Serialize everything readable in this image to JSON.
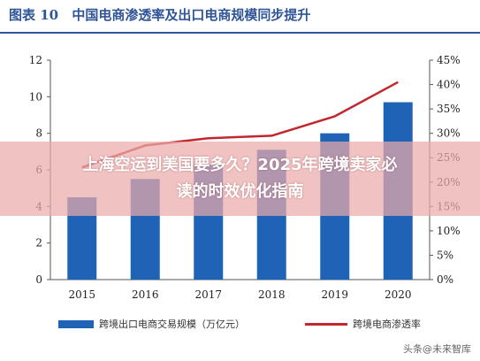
{
  "header": {
    "figure_no": "图表 10",
    "title": "中国电商渗透率及出口电商规模同步提升"
  },
  "overlay": {
    "line1": "上海空运到美国要多久？2025年跨境卖家必",
    "line2": "读的时效优化指南"
  },
  "watermark": "头条@未来智库",
  "colors": {
    "bar": "#1f63b6",
    "line": "#c1272d",
    "title": "#2f5597"
  },
  "chart_data": {
    "type": "bar",
    "categories": [
      "2015",
      "2016",
      "2017",
      "2018",
      "2019",
      "2020"
    ],
    "series": [
      {
        "name": "跨境出口电商交易规模（万亿元）",
        "type": "bar",
        "axis": "left",
        "values": [
          4.5,
          5.5,
          6.3,
          7.1,
          8.0,
          9.7
        ]
      },
      {
        "name": "跨境电商渗透率",
        "type": "line",
        "axis": "right",
        "values": [
          23.0,
          27.5,
          29.0,
          29.5,
          33.5,
          40.5
        ]
      }
    ],
    "ylim_left": [
      0,
      12
    ],
    "yticks_left": [
      "0",
      "2",
      "4",
      "6",
      "8",
      "10",
      "12"
    ],
    "ylim_right": [
      0,
      45
    ],
    "yticks_right": [
      "0%",
      "5%",
      "10%",
      "15%",
      "20%",
      "25%",
      "30%",
      "35%",
      "40%",
      "45%"
    ],
    "legend_position": "bottom",
    "grid": false
  }
}
